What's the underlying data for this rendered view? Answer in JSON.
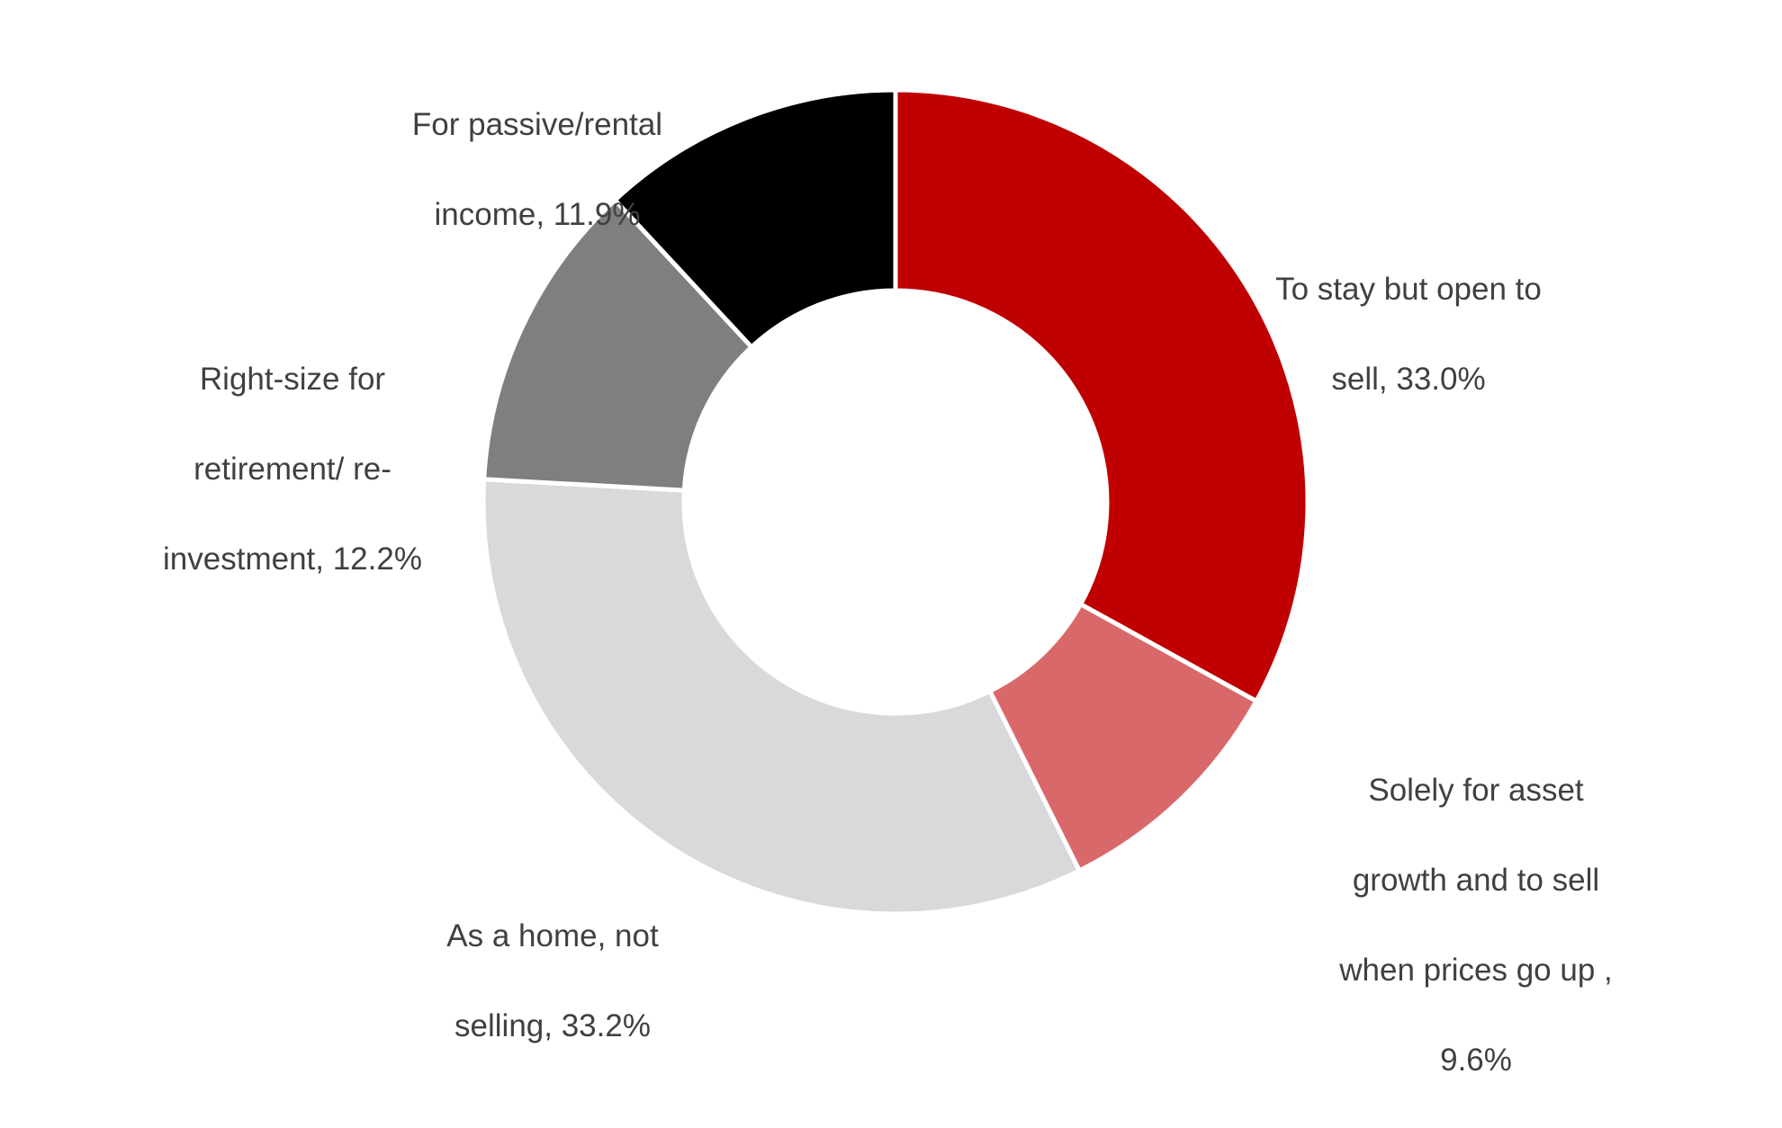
{
  "chart_data": {
    "type": "pie",
    "donut": true,
    "title": "",
    "legend": "none",
    "slices": [
      {
        "label_lines": [
          "To stay but open to",
          "sell, 33.0%"
        ],
        "category": "To stay but open to sell",
        "value": 33.0,
        "color": "#c00000"
      },
      {
        "label_lines": [
          "Solely for asset",
          "growth and to sell",
          "when prices go up ,",
          "9.6%"
        ],
        "category": "Solely for asset growth and to sell when prices go up",
        "value": 9.6,
        "color": "#d9686a"
      },
      {
        "label_lines": [
          "As a home, not",
          "selling, 33.2%"
        ],
        "category": "As a home, not selling",
        "value": 33.2,
        "color": "#d9d9d9"
      },
      {
        "label_lines": [
          "Right-size for",
          "retirement/ re-",
          "investment, 12.2%"
        ],
        "category": "Right-size for retirement/ re-investment",
        "value": 12.2,
        "color": "#7f7f7f"
      },
      {
        "label_lines": [
          "For passive/rental",
          "income, 11.9%"
        ],
        "category": "For passive/rental income",
        "value": 11.9,
        "color": "#000000"
      }
    ]
  }
}
